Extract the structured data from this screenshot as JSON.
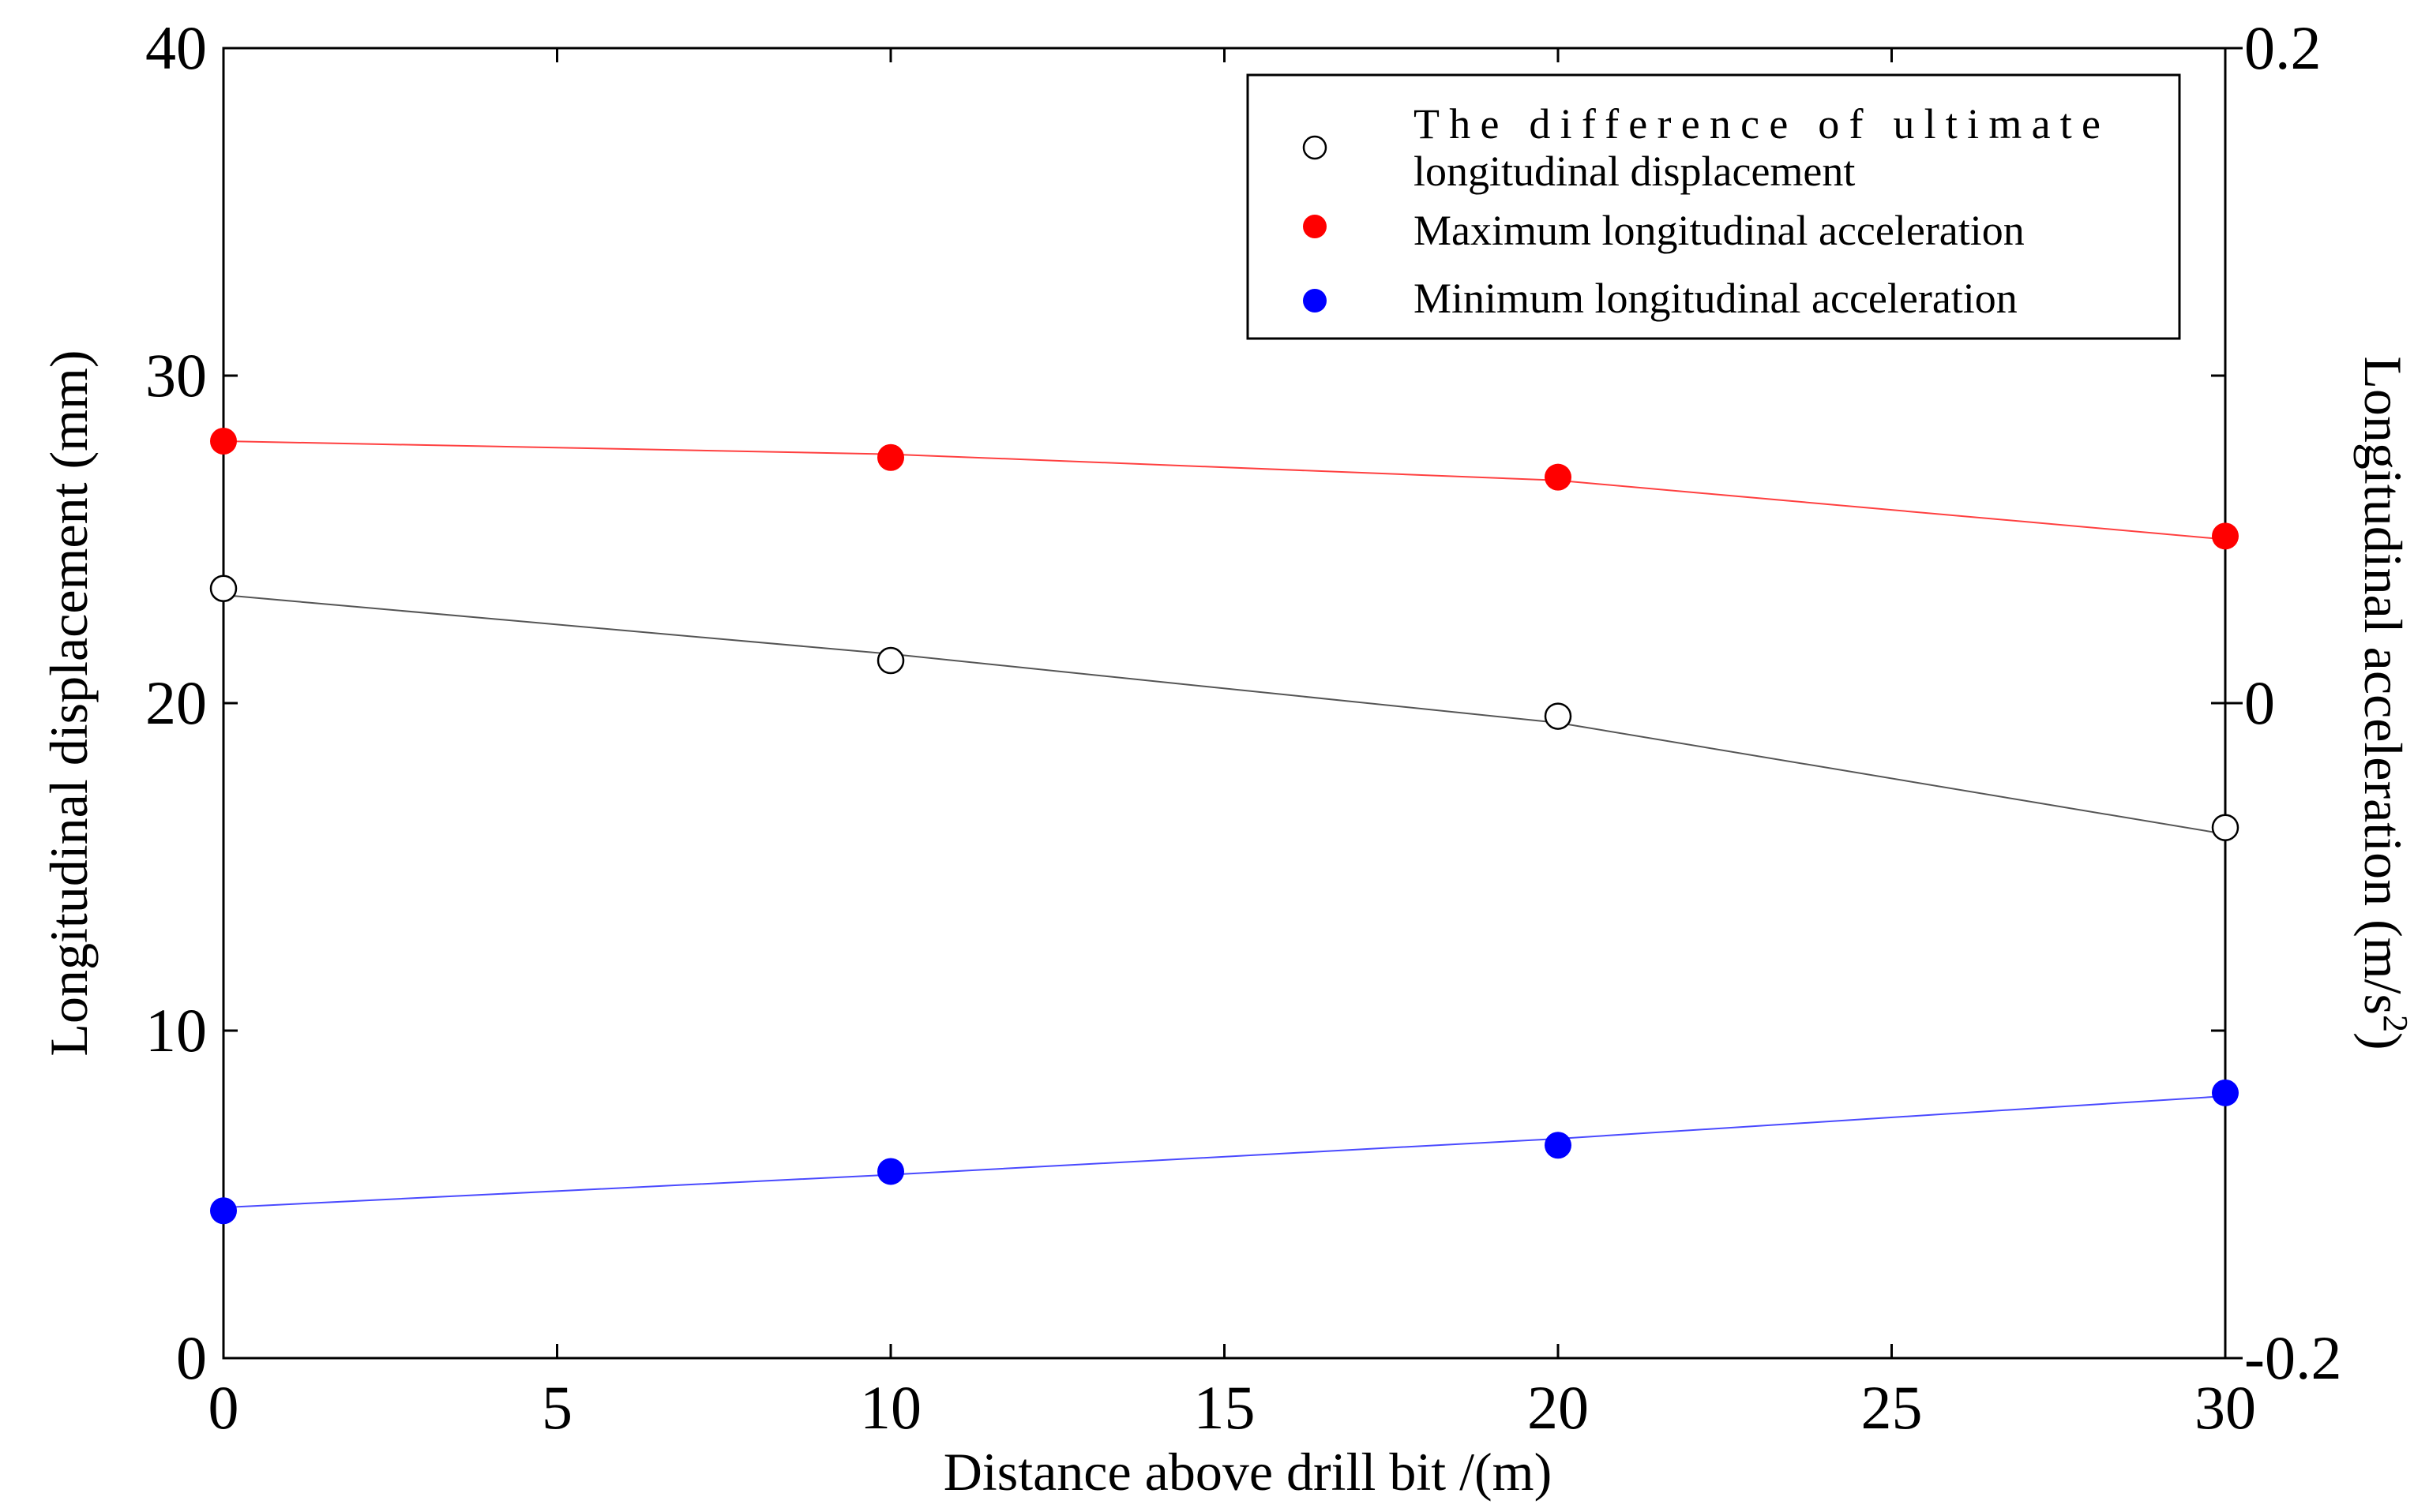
{
  "chart_data": {
    "type": "line",
    "title": "",
    "xlabel": "Distance above drill bit /(m)",
    "ylabel": "Longitudinal displacement (mm)",
    "ylabel_right": "Longitudinal acceleration (m/s",
    "ylabel_right_sup": "2",
    "ylabel_right_close": ")",
    "xlim": [
      0,
      30
    ],
    "ylim": [
      0,
      40
    ],
    "ylim_right": [
      -0.2,
      0.2
    ],
    "x_ticks": [
      "0",
      "5",
      "10",
      "15",
      "20",
      "25",
      "30"
    ],
    "y_ticks": [
      "0",
      "10",
      "20",
      "30",
      "40"
    ],
    "y_right_ticks": [
      "-0.2",
      "0",
      "0.2"
    ],
    "x": [
      0,
      10,
      20,
      30
    ],
    "series": [
      {
        "name": "The difference of ultimate longitudinal displacement",
        "legend_line1": "The difference of ultimate",
        "legend_line2": "longitudinal displacement",
        "axis": "left",
        "marker": "open-circle",
        "color": "#000000",
        "line_color": "#555555",
        "values": [
          23.5,
          21.3,
          19.6,
          16.2
        ],
        "fit": [
          23.3,
          21.5,
          19.4,
          16.0
        ]
      },
      {
        "name": "Maximum longitudinal acceleration",
        "axis": "left",
        "marker": "filled-circle",
        "color": "#ff0000",
        "line_color": "#ff4040",
        "values": [
          28.0,
          27.5,
          26.9,
          25.1
        ],
        "fit": [
          28.0,
          27.6,
          26.8,
          25.0
        ]
      },
      {
        "name": "Minimum longitudinal acceleration",
        "axis": "left",
        "marker": "filled-circle",
        "color": "#0000ff",
        "line_color": "#4a4aff",
        "values": [
          4.5,
          5.7,
          6.5,
          8.1
        ],
        "fit": [
          4.6,
          5.6,
          6.7,
          8.0
        ]
      }
    ],
    "legend_position": "top-right",
    "grid": false
  }
}
